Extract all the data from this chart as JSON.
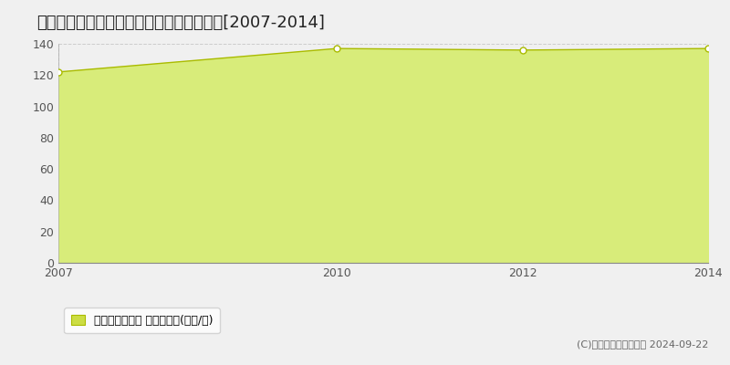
{
  "title": "千葉市稲毛区弥生町　マンション価格推移[2007-2014]",
  "x_values": [
    2007,
    2010,
    2012,
    2014
  ],
  "y_values": [
    122,
    137,
    136,
    137
  ],
  "ylim": [
    0,
    140
  ],
  "yticks": [
    0,
    20,
    40,
    60,
    80,
    100,
    120,
    140
  ],
  "xticks": [
    2007,
    2010,
    2012,
    2014
  ],
  "line_color": "#aabb00",
  "fill_color": "#d8ec7a",
  "marker_color": "white",
  "marker_edge_color": "#aabb00",
  "marker_size": 5,
  "grid_color": "#cccccc",
  "background_color": "#f0f0f0",
  "plot_bg_color": "#f0f0f0",
  "legend_label": "マンション価格 平均坪単価(万円/坪)",
  "legend_marker_color": "#ccdd44",
  "legend_marker_edge": "#aabb00",
  "copyright_text": "(C)土地価格ドットコム 2024-09-22",
  "title_fontsize": 13,
  "axis_fontsize": 9,
  "legend_fontsize": 9,
  "copyright_fontsize": 8
}
